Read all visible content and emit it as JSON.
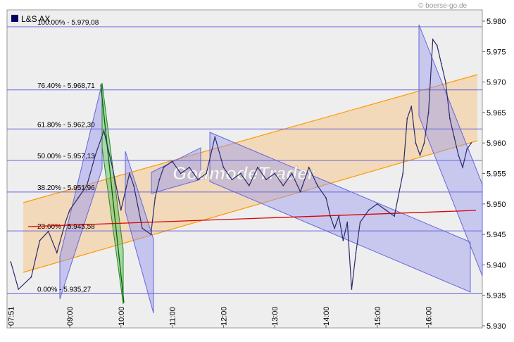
{
  "watermark": "© boerse-go.de",
  "chart_data": {
    "type": "line",
    "legend": [
      {
        "name": "L&S AX",
        "color": "#000066"
      }
    ],
    "y_ticks": [
      "5.980",
      "5.975",
      "5.970",
      "5.965",
      "5.960",
      "5.955",
      "5.950",
      "5.945",
      "5.940",
      "5.935",
      "5.930"
    ],
    "x_ticks": [
      "07:51",
      "09:00",
      "10:00",
      "11:00",
      "12:00",
      "13:00",
      "14:00",
      "15:00",
      "16:00"
    ],
    "ylim": [
      5.93,
      5.981
    ],
    "fib_levels": [
      {
        "label": "100.00% - 5.979,08",
        "value": 5.97908
      },
      {
        "label": "76.40% - 5.968,71",
        "value": 5.96871
      },
      {
        "label": "61.80% - 5.962,30",
        "value": 5.9623
      },
      {
        "label": "50.00% - 5.957,13",
        "value": 5.95713
      },
      {
        "label": "38.20% - 5.951,96",
        "value": 5.95196
      },
      {
        "label": "23.60% - 5.945,58",
        "value": 5.94558
      },
      {
        "label": "0.00% - 5.935,27",
        "value": 5.93527
      }
    ],
    "series": [
      {
        "name": "L&S AX",
        "color": "#2a2a6a",
        "x": [
          "07:51",
          "08:00",
          "08:15",
          "08:25",
          "08:35",
          "08:45",
          "08:55",
          "09:00",
          "09:10",
          "09:20",
          "09:30",
          "09:40",
          "09:50",
          "10:00",
          "10:10",
          "10:15",
          "10:25",
          "10:35",
          "10:40",
          "10:45",
          "10:50",
          "11:00",
          "11:10",
          "11:20",
          "11:30",
          "11:40",
          "11:50",
          "12:00",
          "12:10",
          "12:20",
          "12:30",
          "12:40",
          "12:50",
          "13:00",
          "13:10",
          "13:20",
          "13:30",
          "13:40",
          "13:50",
          "14:00",
          "14:05",
          "14:10",
          "14:15",
          "14:20",
          "14:25",
          "14:30",
          "14:35",
          "14:40",
          "14:50",
          "15:00",
          "15:10",
          "15:20",
          "15:30",
          "15:35",
          "15:40",
          "15:45",
          "15:50",
          "15:55",
          "16:00",
          "16:05",
          "16:10",
          "16:15",
          "16:20",
          "16:25",
          "16:30",
          "16:35",
          "16:40",
          "16:45",
          "16:50"
        ],
        "values": [
          5.9405,
          5.936,
          5.938,
          5.944,
          5.9455,
          5.942,
          5.947,
          5.949,
          5.951,
          5.953,
          5.958,
          5.962,
          5.956,
          5.949,
          5.955,
          5.953,
          5.946,
          5.945,
          5.951,
          5.954,
          5.956,
          5.957,
          5.955,
          5.956,
          5.954,
          5.955,
          5.961,
          5.956,
          5.954,
          5.955,
          5.953,
          5.956,
          5.954,
          5.955,
          5.953,
          5.955,
          5.952,
          5.956,
          5.953,
          5.951,
          5.948,
          5.946,
          5.948,
          5.944,
          5.947,
          5.936,
          5.942,
          5.947,
          5.949,
          5.95,
          5.949,
          5.948,
          5.955,
          5.964,
          5.966,
          5.96,
          5.958,
          5.96,
          5.965,
          5.977,
          5.976,
          5.973,
          5.97,
          5.964,
          5.961,
          5.958,
          5.956,
          5.959,
          5.96
        ]
      }
    ]
  }
}
